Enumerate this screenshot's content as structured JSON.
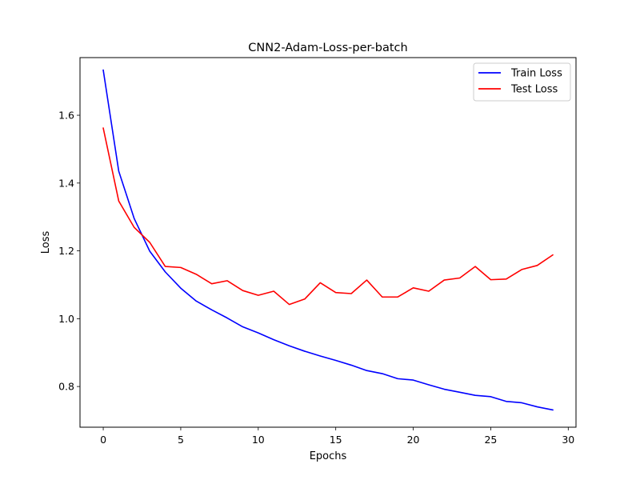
{
  "chart_data": {
    "type": "line",
    "title": "CNN2-Adam-Loss-per-batch",
    "xlabel": "Epochs",
    "ylabel": "Loss",
    "xlim": [
      -1.5,
      30.5
    ],
    "ylim": [
      0.68,
      1.77
    ],
    "xticks": [
      0,
      5,
      10,
      15,
      20,
      25,
      30
    ],
    "yticks": [
      0.8,
      1.0,
      1.2,
      1.4,
      1.6
    ],
    "grid": false,
    "legend_position": "top-right",
    "x": [
      0,
      1,
      2,
      3,
      4,
      5,
      6,
      7,
      8,
      9,
      10,
      11,
      12,
      13,
      14,
      15,
      16,
      17,
      18,
      19,
      20,
      21,
      22,
      23,
      24,
      25,
      26,
      27,
      28,
      29
    ],
    "series": [
      {
        "name": "Train Loss",
        "color": "#0000ff",
        "values": [
          1.733,
          1.435,
          1.295,
          1.199,
          1.138,
          1.09,
          1.052,
          1.026,
          1.002,
          0.976,
          0.958,
          0.938,
          0.92,
          0.904,
          0.89,
          0.877,
          0.863,
          0.847,
          0.838,
          0.823,
          0.819,
          0.805,
          0.792,
          0.783,
          0.774,
          0.77,
          0.756,
          0.752,
          0.74,
          0.731
        ]
      },
      {
        "name": "Test Loss",
        "color": "#ff0000",
        "values": [
          1.562,
          1.347,
          1.269,
          1.225,
          1.154,
          1.151,
          1.131,
          1.103,
          1.112,
          1.083,
          1.069,
          1.081,
          1.042,
          1.058,
          1.106,
          1.077,
          1.074,
          1.114,
          1.064,
          1.064,
          1.091,
          1.081,
          1.114,
          1.12,
          1.154,
          1.115,
          1.117,
          1.145,
          1.157,
          1.188
        ]
      }
    ]
  }
}
